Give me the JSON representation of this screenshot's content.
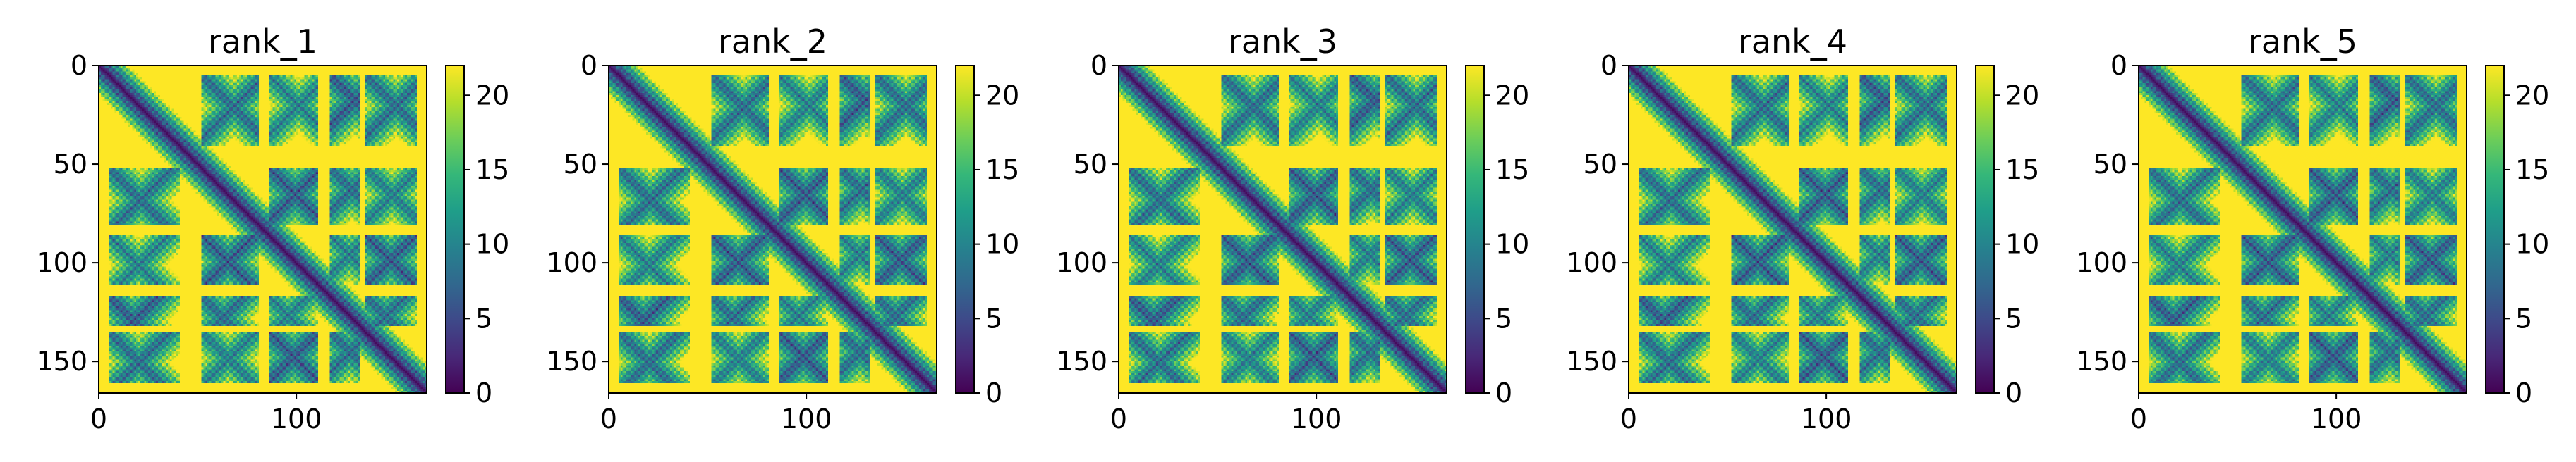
{
  "colormap": "viridis",
  "colormap_stops": [
    "#440154",
    "#482878",
    "#3e4989",
    "#31688e",
    "#26828e",
    "#1f9e89",
    "#35b779",
    "#6ece58",
    "#b5de2b",
    "#fde725"
  ],
  "chart_data": [
    {
      "type": "heatmap",
      "title": "rank_1",
      "xlabel": "",
      "ylabel": "",
      "xlim": [
        0,
        166
      ],
      "ylim": [
        166,
        0
      ],
      "x_ticks": [
        0,
        100
      ],
      "y_ticks": [
        0,
        50,
        100,
        150
      ],
      "colorbar": {
        "vmin": 0,
        "vmax": 22,
        "ticks": [
          0,
          5,
          10,
          15,
          20
        ]
      },
      "matrix_size": 166,
      "helix_segments": [
        [
          5,
          40
        ],
        [
          52,
          80
        ],
        [
          86,
          110
        ],
        [
          117,
          131
        ],
        [
          135,
          160
        ]
      ],
      "description_values": "pairwise distance map: near 0 on the diagonal, saturating at ~22 far from it"
    },
    {
      "type": "heatmap",
      "title": "rank_2",
      "xlabel": "",
      "ylabel": "",
      "xlim": [
        0,
        166
      ],
      "ylim": [
        166,
        0
      ],
      "x_ticks": [
        0,
        100
      ],
      "y_ticks": [
        0,
        50,
        100,
        150
      ],
      "colorbar": {
        "vmin": 0,
        "vmax": 22,
        "ticks": [
          0,
          5,
          10,
          15,
          20
        ]
      },
      "matrix_size": 166,
      "helix_segments": [
        [
          5,
          40
        ],
        [
          52,
          80
        ],
        [
          86,
          110
        ],
        [
          117,
          131
        ],
        [
          135,
          160
        ]
      ],
      "description_values": "pairwise distance map: near 0 on the diagonal, saturating at ~22 far from it"
    },
    {
      "type": "heatmap",
      "title": "rank_3",
      "xlabel": "",
      "ylabel": "",
      "xlim": [
        0,
        166
      ],
      "ylim": [
        166,
        0
      ],
      "x_ticks": [
        0,
        100
      ],
      "y_ticks": [
        0,
        50,
        100,
        150
      ],
      "colorbar": {
        "vmin": 0,
        "vmax": 22,
        "ticks": [
          0,
          5,
          10,
          15,
          20
        ]
      },
      "matrix_size": 166,
      "helix_segments": [
        [
          5,
          40
        ],
        [
          52,
          80
        ],
        [
          86,
          110
        ],
        [
          117,
          131
        ],
        [
          135,
          160
        ]
      ],
      "description_values": "pairwise distance map: near 0 on the diagonal, saturating at ~22 far from it"
    },
    {
      "type": "heatmap",
      "title": "rank_4",
      "xlabel": "",
      "ylabel": "",
      "xlim": [
        0,
        166
      ],
      "ylim": [
        166,
        0
      ],
      "x_ticks": [
        0,
        100
      ],
      "y_ticks": [
        0,
        50,
        100,
        150
      ],
      "colorbar": {
        "vmin": 0,
        "vmax": 22,
        "ticks": [
          0,
          5,
          10,
          15,
          20
        ]
      },
      "matrix_size": 166,
      "helix_segments": [
        [
          5,
          40
        ],
        [
          52,
          80
        ],
        [
          86,
          110
        ],
        [
          117,
          131
        ],
        [
          135,
          160
        ]
      ],
      "description_values": "pairwise distance map: near 0 on the diagonal, saturating at ~22 far from it"
    },
    {
      "type": "heatmap",
      "title": "rank_5",
      "xlabel": "",
      "ylabel": "",
      "xlim": [
        0,
        166
      ],
      "ylim": [
        166,
        0
      ],
      "x_ticks": [
        0,
        100
      ],
      "y_ticks": [
        0,
        50,
        100,
        150
      ],
      "colorbar": {
        "vmin": 0,
        "vmax": 22,
        "ticks": [
          0,
          5,
          10,
          15,
          20
        ]
      },
      "matrix_size": 166,
      "helix_segments": [
        [
          5,
          40
        ],
        [
          52,
          80
        ],
        [
          86,
          110
        ],
        [
          117,
          131
        ],
        [
          135,
          160
        ]
      ],
      "description_values": "pairwise distance map: near 0 on the diagonal, saturating at ~22 far from it"
    }
  ]
}
